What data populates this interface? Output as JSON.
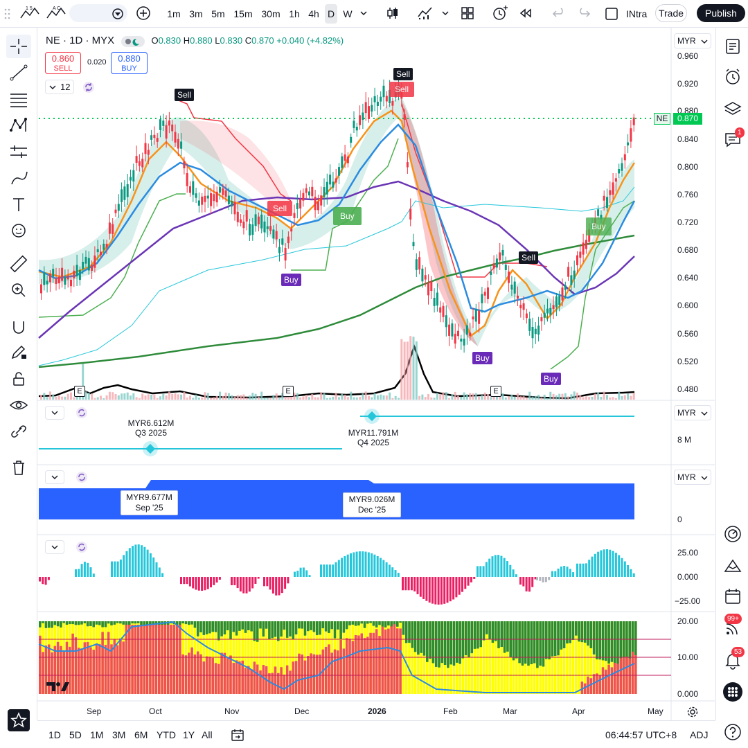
{
  "toolbar": {
    "intervals": [
      "1m",
      "3m",
      "5m",
      "15m",
      "30m",
      "1h",
      "4h",
      "D",
      "W"
    ],
    "active_interval": "D",
    "indicator_name": "INtra",
    "trade_label": "Trade",
    "publish_label": "Publish"
  },
  "legend": {
    "symbol": "NE · 1D · MYX",
    "o_label": "O",
    "o_value": "0.830",
    "h_label": "H",
    "h_value": "0.880",
    "l_label": "L",
    "l_value": "0.830",
    "c_label": "C",
    "c_value": "0.870",
    "change": "+0.040 (+4.82%)",
    "sell_price": "0.860",
    "sell_label": "SELL",
    "spread": "0.020",
    "buy_price": "0.880",
    "buy_label": "BUY",
    "indicator_count": "12"
  },
  "currency": "MYR",
  "price_axis": {
    "labels": [
      "0.960",
      "0.920",
      "0.880",
      "0.840",
      "0.800",
      "0.760",
      "0.720",
      "0.680",
      "0.640",
      "0.600",
      "0.560",
      "0.520",
      "0.480"
    ],
    "last_symbol": "NE",
    "last_price": "0.870"
  },
  "signals": [
    {
      "text": "Sell"
    },
    {
      "text": "Sell"
    },
    {
      "text": "Sell"
    },
    {
      "text": "Sell"
    },
    {
      "text": "Sell"
    },
    {
      "text": "Buy"
    },
    {
      "text": "Buy"
    },
    {
      "text": "Buy"
    },
    {
      "text": "Buy"
    },
    {
      "text": "Buy"
    }
  ],
  "earnings_mark": "E",
  "pane2": {
    "axis_label": "8 M",
    "tip1_value": "MYR6.612M",
    "tip1_period": "Q3 2025",
    "tip2_value": "MYR11.791M",
    "tip2_period": "Q4 2025"
  },
  "pane3": {
    "axis_label": "0",
    "tip1_value": "MYR9.677M",
    "tip1_period": "Sep '25",
    "tip2_value": "MYR9.026M",
    "tip2_period": "Dec '25"
  },
  "pane4": {
    "labels": [
      "25.00",
      "0.000",
      "−25.00"
    ]
  },
  "pane5": {
    "labels": [
      "20.00",
      "10.00",
      "0.000"
    ]
  },
  "x_axis": [
    "Sep",
    "Oct",
    "Nov",
    "Dec",
    "2026",
    "Feb",
    "Mar",
    "Apr",
    "May"
  ],
  "bottom": {
    "ranges": [
      "1D",
      "5D",
      "1M",
      "3M",
      "6M",
      "YTD",
      "1Y",
      "All"
    ],
    "time": "06:44:57 UTC+8",
    "adj": "ADJ"
  },
  "right_badges": {
    "chat": "1",
    "feed": "99+",
    "alerts": "53"
  },
  "colors": {
    "up": "#089981",
    "down": "#f23645",
    "buy_signal": "#6a2bb8",
    "sell_signal": "#131722",
    "ma_orange": "#f7931a",
    "ma_blue": "#2a8be0",
    "ma_purple": "#6a35b5",
    "ma_green": "#2e8b3a",
    "last_price": "#00c853"
  }
}
